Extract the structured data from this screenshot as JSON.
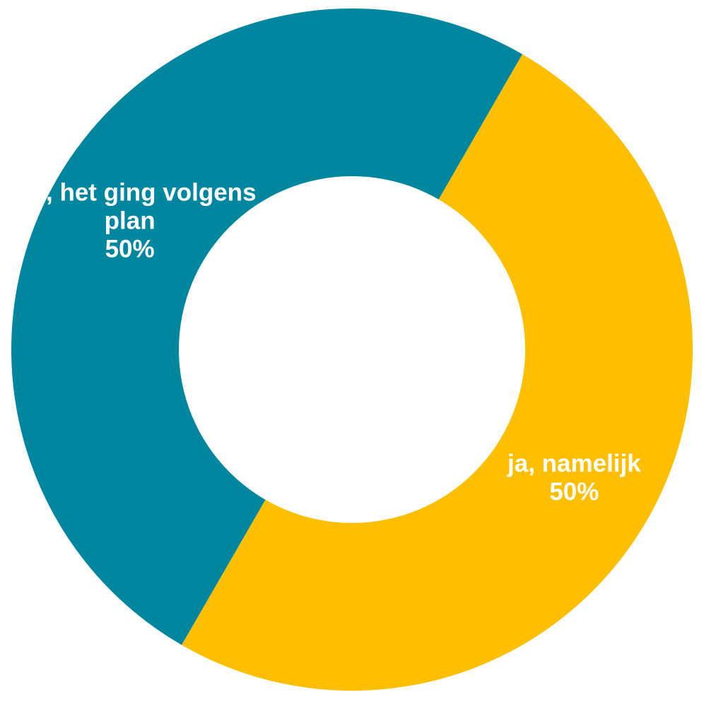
{
  "chart_data": {
    "type": "pie",
    "variant": "donut",
    "slices": [
      {
        "label_lines": [
          "ja, namelijk"
        ],
        "value": 50,
        "value_label": "50%",
        "color": "#FDBF00"
      },
      {
        "label_lines": [
          "nee, het ging volgens",
          "plan"
        ],
        "value": 50,
        "value_label": "50%",
        "color": "#00879F"
      }
    ],
    "start_angle_deg": 30,
    "direction": "clockwise",
    "legend": "none",
    "data_labels": "inside"
  },
  "colors": {
    "background": "#FFFFFF",
    "label_text": "#FFFFFF"
  }
}
